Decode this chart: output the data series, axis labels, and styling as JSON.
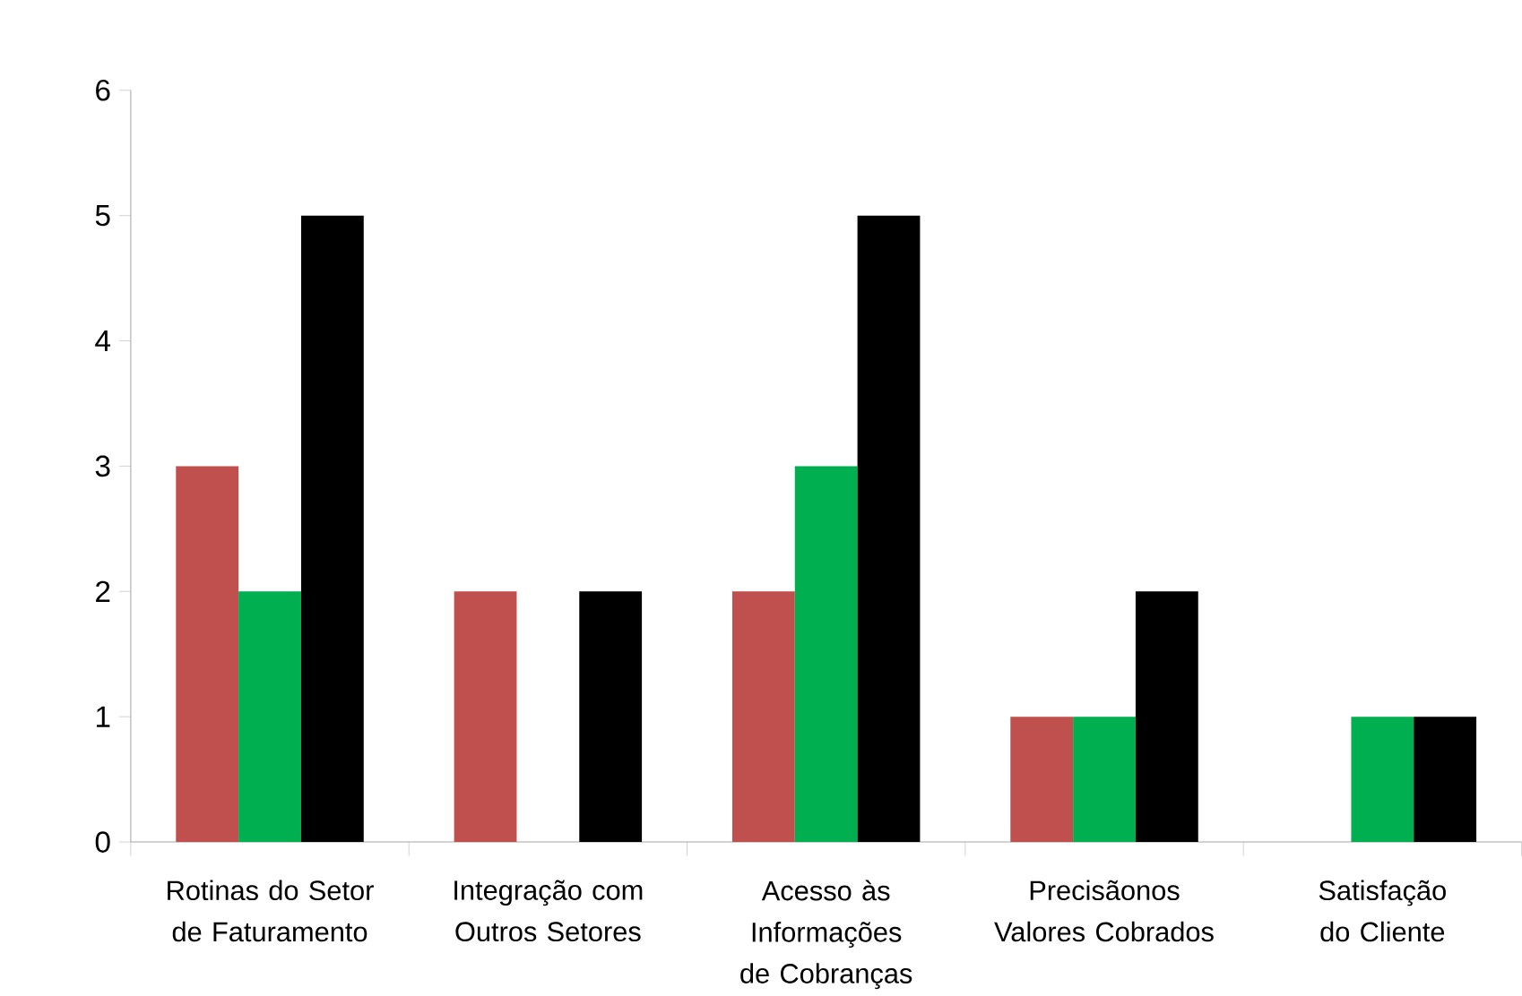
{
  "chart_data": {
    "type": "bar",
    "categories": [
      "Rotinas do Setor de Faturamento",
      "Integração com Outros Setores",
      "Acesso às Informações de Cobranças",
      "Precisãonos Valores Cobrados",
      "Satisfação do Cliente"
    ],
    "series": [
      {
        "color": "#c0504d",
        "values": [
          3,
          2,
          2,
          1,
          0
        ]
      },
      {
        "color": "#00b050",
        "values": [
          2,
          0,
          3,
          1,
          1
        ]
      },
      {
        "color": "#000000",
        "values": [
          5,
          2,
          5,
          2,
          1
        ]
      }
    ],
    "ylim": [
      0,
      6
    ],
    "yticks": [
      0,
      1,
      2,
      3,
      4,
      5,
      6
    ],
    "grid": false
  }
}
